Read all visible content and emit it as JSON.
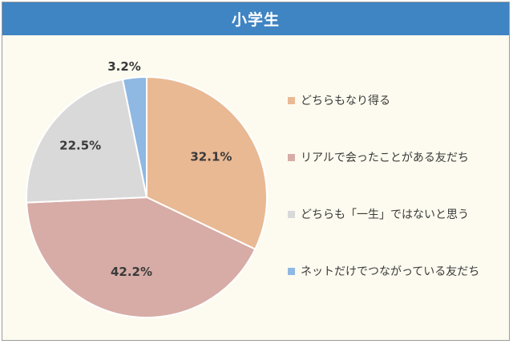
{
  "chart_data": {
    "type": "pie",
    "title": "小学生",
    "slices": [
      {
        "label": "どちらもなり得る",
        "value": 32.1,
        "value_label": "32.1%",
        "color": "#e9b994"
      },
      {
        "label": "リアルで会ったことがある友だち",
        "value": 42.2,
        "value_label": "42.2%",
        "color": "#d7aca6"
      },
      {
        "label": "どちらも「一生」ではないと思う",
        "value": 22.5,
        "value_label": "22.5%",
        "color": "#d9d9d9"
      },
      {
        "label": "ネットだけでつながっている友だち",
        "value": 3.2,
        "value_label": "3.2%",
        "color": "#8fb8e3"
      }
    ],
    "start_angle": "12 o'clock",
    "direction": "clockwise",
    "legend_position": "right",
    "colors": {
      "header": "#3f84c3",
      "background": "#fdfbef"
    }
  }
}
